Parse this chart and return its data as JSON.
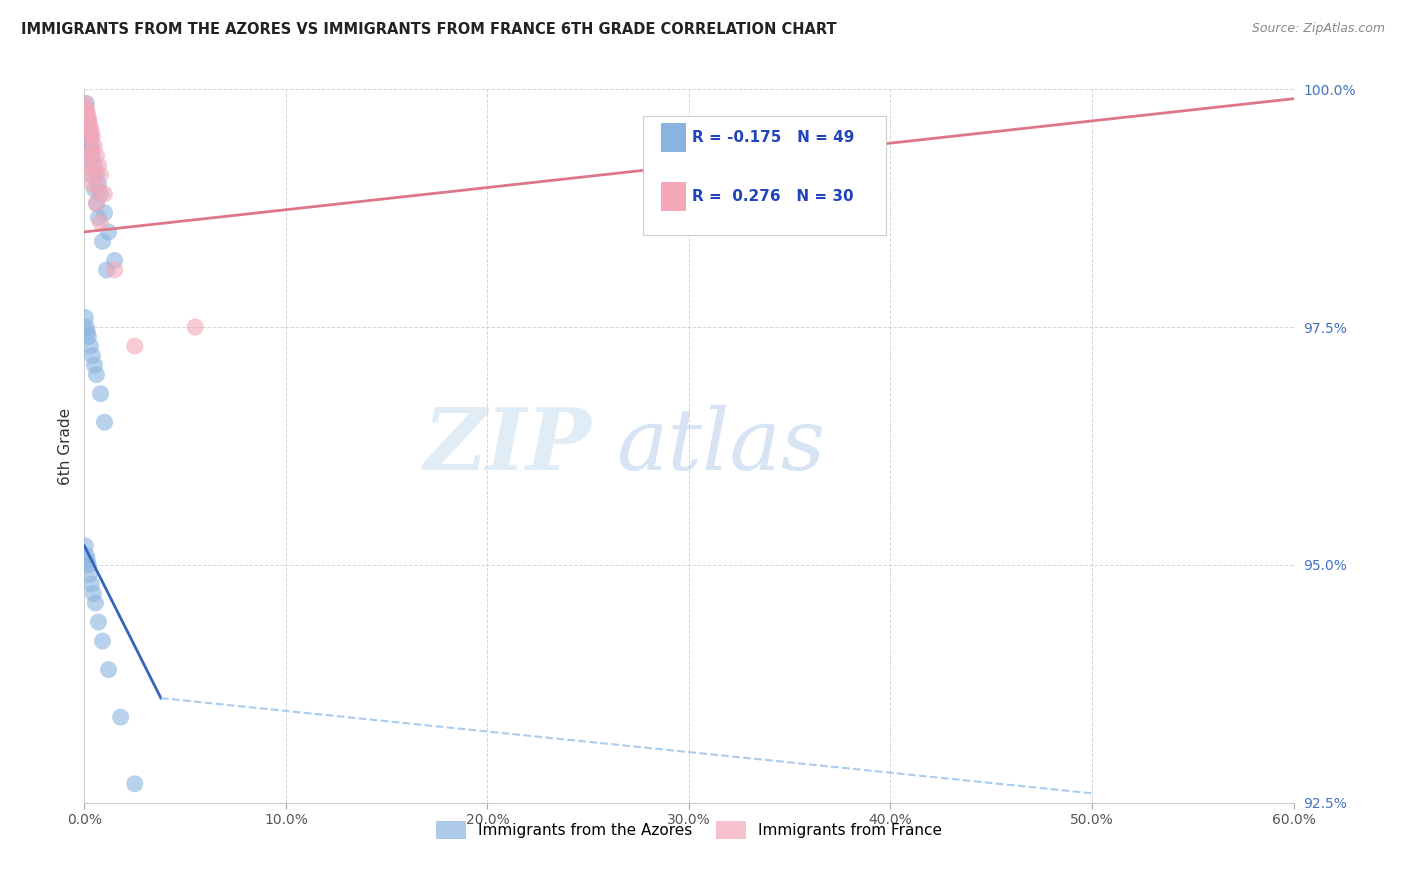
{
  "title": "IMMIGRANTS FROM THE AZORES VS IMMIGRANTS FROM FRANCE 6TH GRADE CORRELATION CHART",
  "source": "Source: ZipAtlas.com",
  "ylabel": "6th Grade",
  "xmin": 0.0,
  "xmax": 60.0,
  "ymin": 92.5,
  "ymax": 100.0,
  "xticks": [
    0.0,
    10.0,
    20.0,
    30.0,
    40.0,
    50.0,
    60.0
  ],
  "yticks": [
    92.5,
    95.0,
    97.5,
    100.0
  ],
  "R_azores": -0.175,
  "N_azores": 49,
  "R_france": 0.276,
  "N_france": 30,
  "legend_label_azores": "Immigrants from the Azores",
  "legend_label_france": "Immigrants from France",
  "color_azores": "#8ab4e0",
  "color_france": "#f4a8b8",
  "line_color_azores": "#3366bb",
  "line_color_france": "#dd7788",
  "dashed_color": "#aaccee",
  "watermark_zip": "ZIP",
  "watermark_atlas": "atlas",
  "azores_x": [
    0.1,
    0.15,
    0.2,
    0.25,
    0.3,
    0.35,
    0.4,
    0.5,
    0.6,
    0.7,
    0.8,
    1.0,
    1.2,
    1.5,
    0.05,
    0.1,
    0.15,
    0.2,
    0.25,
    0.3,
    0.4,
    0.5,
    0.6,
    0.7,
    0.9,
    1.1,
    0.05,
    0.1,
    0.15,
    0.2,
    0.3,
    0.4,
    0.5,
    0.6,
    0.8,
    1.0,
    0.05,
    0.1,
    0.15,
    0.2,
    0.25,
    0.35,
    0.45,
    0.55,
    0.7,
    0.9,
    1.2,
    1.8,
    2.5
  ],
  "azores_y": [
    99.85,
    99.7,
    99.6,
    99.55,
    99.5,
    99.4,
    99.3,
    99.2,
    99.1,
    99.0,
    98.9,
    98.7,
    98.5,
    98.2,
    99.8,
    99.65,
    99.55,
    99.45,
    99.35,
    99.25,
    99.1,
    98.95,
    98.8,
    98.65,
    98.4,
    98.1,
    97.6,
    97.5,
    97.45,
    97.4,
    97.3,
    97.2,
    97.1,
    97.0,
    96.8,
    96.5,
    95.2,
    95.1,
    95.05,
    95.0,
    94.9,
    94.8,
    94.7,
    94.6,
    94.4,
    94.2,
    93.9,
    93.4,
    92.7
  ],
  "france_x": [
    0.05,
    0.1,
    0.15,
    0.2,
    0.25,
    0.3,
    0.35,
    0.4,
    0.5,
    0.6,
    0.7,
    0.8,
    1.0,
    0.05,
    0.1,
    0.15,
    0.2,
    0.25,
    0.35,
    0.5,
    0.7,
    0.1,
    0.2,
    0.3,
    0.4,
    2.5,
    0.6,
    0.8,
    1.5,
    5.5
  ],
  "france_y": [
    99.85,
    99.8,
    99.75,
    99.7,
    99.65,
    99.6,
    99.55,
    99.5,
    99.4,
    99.3,
    99.2,
    99.1,
    98.9,
    99.75,
    99.7,
    99.65,
    99.6,
    99.5,
    99.35,
    99.15,
    98.95,
    99.3,
    99.2,
    99.1,
    99.0,
    97.3,
    98.8,
    98.6,
    98.1,
    97.5
  ],
  "blue_line_x0": 0.0,
  "blue_line_y0": 95.2,
  "blue_line_x1": 3.8,
  "blue_line_y1": 93.6,
  "blue_dash_x0": 3.8,
  "blue_dash_y0": 93.6,
  "blue_dash_x1": 50.0,
  "blue_dash_y1": 92.6,
  "pink_line_x0": 0.0,
  "pink_line_y0": 98.5,
  "pink_line_x1": 60.0,
  "pink_line_y1": 99.9
}
